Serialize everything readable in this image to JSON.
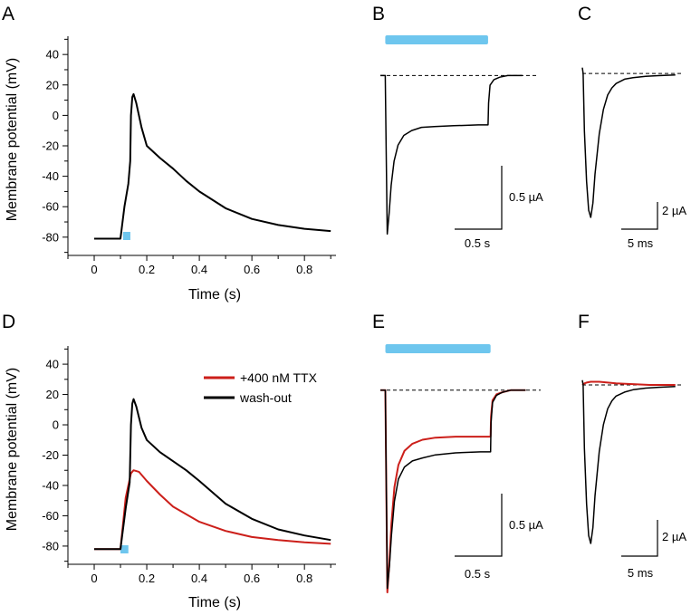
{
  "colors": {
    "stimulus": "#6ec6ee",
    "trace_black": "#000000",
    "trace_red": "#cc1f1a",
    "baseline": "#000000"
  },
  "panels": {
    "A": "A",
    "B": "B",
    "C": "C",
    "D": "D",
    "E": "E",
    "F": "F"
  },
  "chart_data": [
    {
      "panel": "A",
      "type": "line",
      "xlabel": "Time (s)",
      "ylabel": "Membrane potential (mV)",
      "xlim": [
        -0.1,
        0.92
      ],
      "ylim": [
        -92,
        52
      ],
      "xticks": [
        0,
        0.2,
        0.4,
        0.6,
        0.8
      ],
      "xtick_labels": [
        "0",
        "0.2",
        "0.4",
        "0.6",
        "0.8"
      ],
      "yticks": [
        -80,
        -60,
        -40,
        -20,
        0,
        20,
        40
      ],
      "ytick_labels": [
        "-80",
        "-60",
        "-40",
        "-20",
        "0",
        "20",
        "40"
      ],
      "stimulus": {
        "start": 0.11,
        "end": 0.13
      },
      "series": [
        {
          "color": "#000000",
          "x": [
            0,
            0.1,
            0.115,
            0.13,
            0.137,
            0.14,
            0.145,
            0.15,
            0.16,
            0.18,
            0.2,
            0.25,
            0.3,
            0.35,
            0.4,
            0.5,
            0.6,
            0.7,
            0.8,
            0.9
          ],
          "y": [
            -81,
            -81,
            -60,
            -45,
            -30,
            0,
            12,
            14,
            8,
            -8,
            -20,
            -28,
            -35,
            -43,
            -50,
            -61,
            -68,
            -72,
            -74.5,
            -76
          ]
        }
      ]
    },
    {
      "panel": "D",
      "type": "line",
      "xlabel": "Time (s)",
      "ylabel": "Membrane potential (mV)",
      "xlim": [
        -0.1,
        0.92
      ],
      "ylim": [
        -92,
        52
      ],
      "xticks": [
        0,
        0.2,
        0.4,
        0.6,
        0.8
      ],
      "xtick_labels": [
        "0",
        "0.2",
        "0.4",
        "0.6",
        "0.8"
      ],
      "yticks": [
        -80,
        -60,
        -40,
        -20,
        0,
        20,
        40
      ],
      "ytick_labels": [
        "-80",
        "-60",
        "-40",
        "-20",
        "0",
        "20",
        "40"
      ],
      "stimulus": {
        "start": 0.1,
        "end": 0.13
      },
      "legend": {
        "position": "top-right"
      },
      "series": [
        {
          "name": "+400 nM TTX",
          "color": "#cc1f1a",
          "x": [
            0,
            0.1,
            0.12,
            0.14,
            0.15,
            0.17,
            0.2,
            0.25,
            0.3,
            0.4,
            0.5,
            0.6,
            0.7,
            0.8,
            0.9
          ],
          "y": [
            -82,
            -82,
            -48,
            -32,
            -30,
            -31,
            -37,
            -46,
            -54,
            -64,
            -70,
            -74,
            -76,
            -77.5,
            -78.5
          ]
        },
        {
          "name": "wash-out",
          "color": "#000000",
          "x": [
            0,
            0.1,
            0.12,
            0.135,
            0.14,
            0.145,
            0.15,
            0.16,
            0.18,
            0.2,
            0.25,
            0.3,
            0.35,
            0.4,
            0.5,
            0.6,
            0.7,
            0.8,
            0.9
          ],
          "y": [
            -82,
            -82,
            -55,
            -38,
            0,
            14,
            17,
            12,
            -2,
            -10,
            -18,
            -24,
            -30,
            -37,
            -52,
            -62,
            -69,
            -73,
            -76
          ]
        }
      ]
    },
    {
      "panel": "B",
      "type": "line",
      "units": "normalized current vs time (s)",
      "xlim": [
        0,
        1.6
      ],
      "ylim": [
        -1.0,
        0.12
      ],
      "stimulus": {
        "start": 0.05,
        "end": 1.1
      },
      "scalebar": {
        "x_label": "0.5 s",
        "y_label": "0.5 µA"
      },
      "series": [
        {
          "color": "#000000",
          "x": [
            0,
            0.05,
            0.06,
            0.07,
            0.09,
            0.11,
            0.14,
            0.18,
            0.24,
            0.32,
            0.42,
            0.55,
            0.75,
            1.0,
            1.1,
            1.105,
            1.12,
            1.16,
            1.22,
            1.3,
            1.45
          ],
          "y": [
            0,
            0,
            -0.5,
            -0.98,
            -0.85,
            -0.68,
            -0.53,
            -0.43,
            -0.37,
            -0.34,
            -0.32,
            -0.315,
            -0.31,
            -0.305,
            -0.305,
            -0.17,
            -0.06,
            -0.025,
            -0.01,
            0,
            0
          ]
        }
      ]
    },
    {
      "panel": "C",
      "type": "line",
      "units": "normalized current vs time (ms)",
      "xlim": [
        0,
        24
      ],
      "ylim": [
        -1.0,
        0.12
      ],
      "scalebar": {
        "x_label": "5 ms",
        "y_label": "2 µA"
      },
      "series": [
        {
          "color": "#000000",
          "x": [
            0,
            0.2,
            0.5,
            1,
            1.5,
            2,
            2.5,
            3,
            4,
            5,
            6,
            7,
            8,
            10,
            12,
            15,
            18,
            22
          ],
          "y": [
            0.04,
            0,
            -0.4,
            -0.75,
            -0.95,
            -1.0,
            -0.9,
            -0.7,
            -0.42,
            -0.25,
            -0.15,
            -0.1,
            -0.07,
            -0.04,
            -0.03,
            -0.02,
            -0.015,
            -0.01
          ]
        }
      ]
    },
    {
      "panel": "E",
      "type": "line",
      "units": "normalized current vs time (s)",
      "xlim": [
        0,
        1.6
      ],
      "ylim": [
        -1.0,
        0.12
      ],
      "stimulus": {
        "start": 0.05,
        "end": 1.1
      },
      "scalebar": {
        "x_label": "0.5 s",
        "y_label": "0.5 µA"
      },
      "series": [
        {
          "color": "#cc1f1a",
          "x": [
            0,
            0.05,
            0.06,
            0.07,
            0.09,
            0.11,
            0.14,
            0.18,
            0.24,
            0.32,
            0.42,
            0.55,
            0.75,
            1.0,
            1.1,
            1.105,
            1.12,
            1.16,
            1.22,
            1.3,
            1.45
          ],
          "y": [
            0,
            0,
            -0.5,
            -1.0,
            -0.85,
            -0.66,
            -0.48,
            -0.37,
            -0.3,
            -0.265,
            -0.245,
            -0.235,
            -0.23,
            -0.23,
            -0.23,
            -0.13,
            -0.05,
            -0.02,
            -0.01,
            0,
            0
          ]
        },
        {
          "color": "#000000",
          "x": [
            0,
            0.05,
            0.06,
            0.07,
            0.09,
            0.11,
            0.14,
            0.18,
            0.24,
            0.32,
            0.42,
            0.55,
            0.75,
            1.0,
            1.1,
            1.105,
            1.12,
            1.16,
            1.22,
            1.3,
            1.45
          ],
          "y": [
            0,
            0,
            -0.5,
            -0.98,
            -0.87,
            -0.72,
            -0.55,
            -0.44,
            -0.38,
            -0.35,
            -0.335,
            -0.32,
            -0.31,
            -0.305,
            -0.305,
            -0.16,
            -0.06,
            -0.025,
            -0.01,
            0,
            0
          ]
        }
      ]
    },
    {
      "panel": "F",
      "type": "line",
      "units": "normalized current vs time (ms)",
      "xlim": [
        0,
        24
      ],
      "ylim": [
        -1.0,
        0.12
      ],
      "scalebar": {
        "x_label": "5 ms",
        "y_label": "2 µA"
      },
      "series": [
        {
          "color": "#cc1f1a",
          "x": [
            0,
            0.5,
            1,
            2,
            4,
            8,
            12,
            16,
            22
          ],
          "y": [
            0,
            0.01,
            0.015,
            0.02,
            0.02,
            0.01,
            0.005,
            0,
            0
          ]
        },
        {
          "color": "#000000",
          "x": [
            0,
            0.2,
            0.5,
            1,
            1.5,
            2,
            2.5,
            3,
            4,
            5,
            6,
            7,
            8,
            10,
            12,
            15,
            18,
            22
          ],
          "y": [
            0.03,
            0,
            -0.4,
            -0.75,
            -0.95,
            -1.0,
            -0.9,
            -0.7,
            -0.42,
            -0.25,
            -0.15,
            -0.1,
            -0.07,
            -0.045,
            -0.03,
            -0.02,
            -0.015,
            -0.01
          ]
        }
      ]
    }
  ]
}
